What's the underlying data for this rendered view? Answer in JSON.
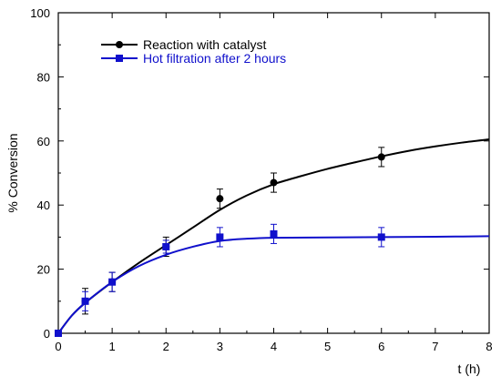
{
  "chart_data": {
    "type": "line",
    "title": "",
    "xlabel": "t (h)",
    "ylabel": "% Conversion",
    "xlim": [
      0,
      8
    ],
    "ylim": [
      0,
      100
    ],
    "xticks": [
      0,
      1,
      2,
      3,
      4,
      5,
      6,
      7,
      8
    ],
    "yticks": [
      0,
      20,
      40,
      60,
      80,
      100
    ],
    "xtick_labels": [
      "0",
      "1",
      "2",
      "3",
      "4",
      "5",
      "6",
      "7",
      "8"
    ],
    "ytick_labels": [
      "0",
      "20",
      "40",
      "60",
      "80",
      "100"
    ],
    "grid": false,
    "legend_position": "top-left",
    "series": [
      {
        "name": "Reaction with catalyst",
        "color": "#000000",
        "marker": "circle",
        "points": [
          {
            "x": 0,
            "y": 0,
            "err": 0
          },
          {
            "x": 0.5,
            "y": 10,
            "err": 4
          },
          {
            "x": 1,
            "y": 16,
            "err": 3
          },
          {
            "x": 2,
            "y": 27,
            "err": 3
          },
          {
            "x": 3,
            "y": 42,
            "err": 3
          },
          {
            "x": 4,
            "y": 47,
            "err": 3
          },
          {
            "x": 6,
            "y": 55,
            "err": 3
          }
        ],
        "fit_curve": [
          [
            0,
            0
          ],
          [
            0.25,
            5.5
          ],
          [
            0.5,
            9.5
          ],
          [
            1,
            16
          ],
          [
            1.5,
            22
          ],
          [
            2,
            27.5
          ],
          [
            2.5,
            33
          ],
          [
            3,
            38.5
          ],
          [
            3.5,
            43
          ],
          [
            4,
            46.5
          ],
          [
            4.5,
            49
          ],
          [
            5,
            51.3
          ],
          [
            5.5,
            53.3
          ],
          [
            6,
            55.2
          ],
          [
            6.5,
            56.9
          ],
          [
            7,
            58.3
          ],
          [
            7.5,
            59.5
          ],
          [
            8,
            60.5
          ]
        ]
      },
      {
        "name": "Hot filtration after 2 hours",
        "color": "#1010CC",
        "marker": "square",
        "points": [
          {
            "x": 0,
            "y": 0,
            "err": 0
          },
          {
            "x": 0.5,
            "y": 10,
            "err": 3
          },
          {
            "x": 1,
            "y": 16,
            "err": 3
          },
          {
            "x": 2,
            "y": 27,
            "err": 2
          },
          {
            "x": 3,
            "y": 30,
            "err": 3
          },
          {
            "x": 4,
            "y": 31,
            "err": 3
          },
          {
            "x": 6,
            "y": 30,
            "err": 3
          }
        ],
        "fit_curve": [
          [
            0,
            0
          ],
          [
            0.25,
            5.5
          ],
          [
            0.5,
            9.5
          ],
          [
            1,
            16
          ],
          [
            1.5,
            21
          ],
          [
            2,
            24.5
          ],
          [
            2.5,
            27
          ],
          [
            3,
            28.8
          ],
          [
            3.5,
            29.5
          ],
          [
            4,
            29.8
          ],
          [
            5,
            29.9
          ],
          [
            6,
            30
          ],
          [
            7,
            30.1
          ],
          [
            8,
            30.3
          ]
        ]
      }
    ]
  }
}
